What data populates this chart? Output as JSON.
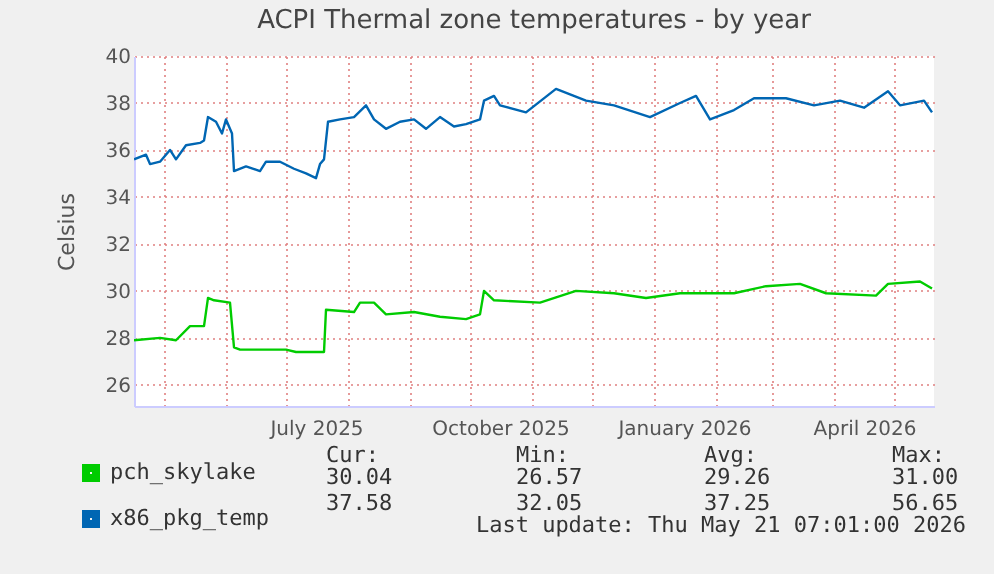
{
  "chart_data": {
    "type": "line",
    "title": "ACPI Thermal zone temperatures - by year",
    "ylabel": "Celsius",
    "xlim": [
      "2025-04-16",
      "2026-05-21"
    ],
    "xticks": [
      {
        "value": "2025-05-01",
        "label": null
      },
      {
        "value": "2025-06-01",
        "label": null
      },
      {
        "value": "2025-07-01",
        "label": null
      },
      {
        "value": "2025-07-16",
        "label": "July 2025"
      },
      {
        "value": "2025-08-01",
        "label": null
      },
      {
        "value": "2025-09-01",
        "label": null
      },
      {
        "value": "2025-10-01",
        "label": null
      },
      {
        "value": "2025-10-16",
        "label": "October 2025"
      },
      {
        "value": "2025-11-01",
        "label": null
      },
      {
        "value": "2025-12-01",
        "label": null
      },
      {
        "value": "2026-01-01",
        "label": null
      },
      {
        "value": "2026-01-16",
        "label": "January 2026"
      },
      {
        "value": "2026-02-01",
        "label": null
      },
      {
        "value": "2026-03-01",
        "label": null
      },
      {
        "value": "2026-04-01",
        "label": null
      },
      {
        "value": "2026-04-16",
        "label": "April 2026"
      },
      {
        "value": "2026-05-01",
        "label": null
      }
    ],
    "ylim": [
      25.1,
      40
    ],
    "yticks": [
      26,
      28,
      30,
      32,
      34,
      36,
      38,
      40
    ],
    "grid": true,
    "legend": "bottom left",
    "marker": "none",
    "line_style": "solid",
    "series": [
      {
        "name": "pch_skylake",
        "color": "#00cc00",
        "x": [
          "2025-04-16",
          "2025-04-29",
          "2025-05-07",
          "2025-05-14",
          "2025-05-21",
          "2025-05-23",
          "2025-05-26",
          "2025-06-03",
          "2025-06-05",
          "2025-06-08",
          "2025-07-01",
          "2025-07-06",
          "2025-07-20",
          "2025-07-21",
          "2025-08-04",
          "2025-08-07",
          "2025-08-14",
          "2025-08-20",
          "2025-09-03",
          "2025-09-16",
          "2025-09-29",
          "2025-10-06",
          "2025-10-08",
          "2025-10-13",
          "2025-11-05",
          "2025-11-23",
          "2025-12-12",
          "2025-12-28",
          "2026-01-14",
          "2026-02-10",
          "2026-02-26",
          "2026-03-15",
          "2026-03-28",
          "2026-04-22",
          "2026-04-28",
          "2026-05-14",
          "2026-05-20"
        ],
        "values": [
          27.9,
          28.0,
          27.9,
          28.5,
          28.5,
          29.7,
          29.6,
          29.5,
          27.6,
          27.5,
          27.5,
          27.4,
          27.4,
          29.2,
          29.1,
          29.5,
          29.5,
          29.0,
          29.1,
          28.9,
          28.8,
          29.0,
          30.0,
          29.6,
          29.5,
          30.0,
          29.9,
          29.7,
          29.9,
          29.9,
          30.2,
          30.3,
          29.9,
          29.8,
          30.3,
          30.4,
          30.1
        ]
      },
      {
        "name": "x86_pkg_temp",
        "color": "#0066b3",
        "x": [
          "2025-04-16",
          "2025-04-22",
          "2025-04-24",
          "2025-04-29",
          "2025-05-04",
          "2025-05-07",
          "2025-05-12",
          "2025-05-19",
          "2025-05-21",
          "2025-05-23",
          "2025-05-27",
          "2025-05-30",
          "2025-06-01",
          "2025-06-04",
          "2025-06-05",
          "2025-06-11",
          "2025-06-18",
          "2025-06-21",
          "2025-06-28",
          "2025-07-05",
          "2025-07-11",
          "2025-07-16",
          "2025-07-18",
          "2025-07-20",
          "2025-07-22",
          "2025-07-28",
          "2025-08-04",
          "2025-08-10",
          "2025-08-14",
          "2025-08-20",
          "2025-08-27",
          "2025-09-03",
          "2025-09-09",
          "2025-09-16",
          "2025-09-23",
          "2025-09-29",
          "2025-10-06",
          "2025-10-08",
          "2025-10-13",
          "2025-10-16",
          "2025-10-29",
          "2025-11-13",
          "2025-11-28",
          "2025-12-12",
          "2025-12-30",
          "2026-01-14",
          "2026-01-22",
          "2026-01-29",
          "2026-02-10",
          "2026-02-20",
          "2026-03-08",
          "2026-03-22",
          "2026-04-04",
          "2026-04-16",
          "2026-04-28",
          "2026-05-04",
          "2026-05-16",
          "2026-05-20"
        ],
        "values": [
          35.6,
          35.8,
          35.4,
          35.5,
          36.0,
          35.6,
          36.2,
          36.3,
          36.4,
          37.4,
          37.2,
          36.7,
          37.3,
          36.7,
          35.1,
          35.3,
          35.1,
          35.5,
          35.5,
          35.2,
          35.0,
          34.8,
          35.4,
          35.6,
          37.2,
          37.3,
          37.4,
          37.9,
          37.3,
          36.9,
          37.2,
          37.3,
          36.9,
          37.4,
          37.0,
          37.1,
          37.3,
          38.1,
          38.3,
          37.9,
          37.6,
          38.6,
          38.1,
          37.9,
          37.4,
          38.0,
          38.3,
          37.3,
          37.7,
          38.2,
          38.2,
          37.9,
          38.1,
          37.8,
          38.5,
          37.9,
          38.1,
          37.6
        ]
      }
    ],
    "annotations": [
      "Cur:",
      "Min:",
      "Avg:",
      "Max:",
      "30.04",
      "26.57",
      "29.26",
      "31.00",
      "37.58",
      "32.05",
      "37.25",
      "56.65",
      "Last update: Thu May 21 07:01:00 2026"
    ]
  }
}
